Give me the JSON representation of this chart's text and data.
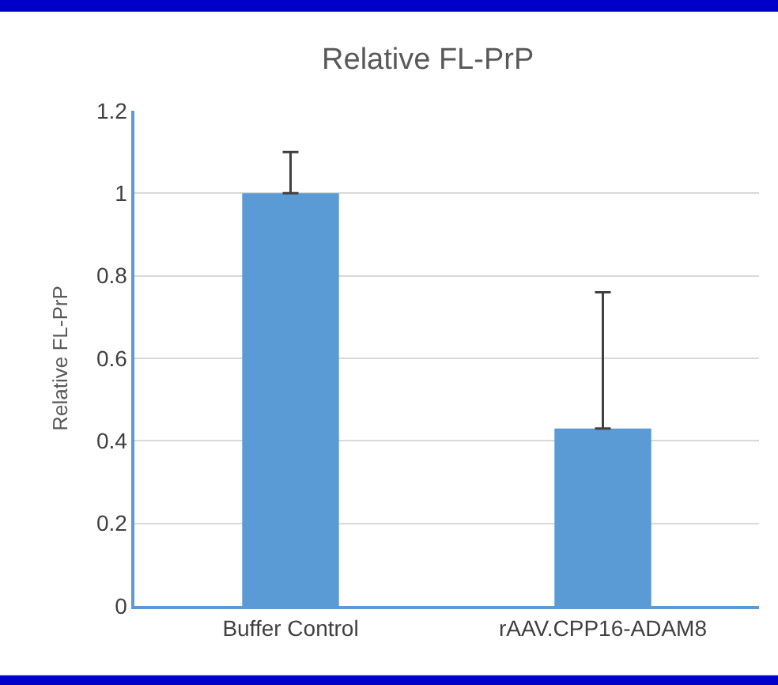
{
  "chart_data": {
    "type": "bar",
    "title": "Relative FL-PrP",
    "ylabel": "Relative FL-PrP",
    "categories": [
      "Buffer Control",
      "rAAV.CPP16-ADAM8"
    ],
    "values": [
      1.0,
      0.43
    ],
    "errors": [
      [
        1.0,
        1.1
      ],
      [
        0.43,
        0.76
      ]
    ],
    "color": "#5b9bd5",
    "ylim": [
      0,
      1.2
    ],
    "yticks": [
      0,
      0.2,
      0.4,
      0.6,
      0.8,
      1,
      1.2
    ],
    "grid": "y"
  }
}
